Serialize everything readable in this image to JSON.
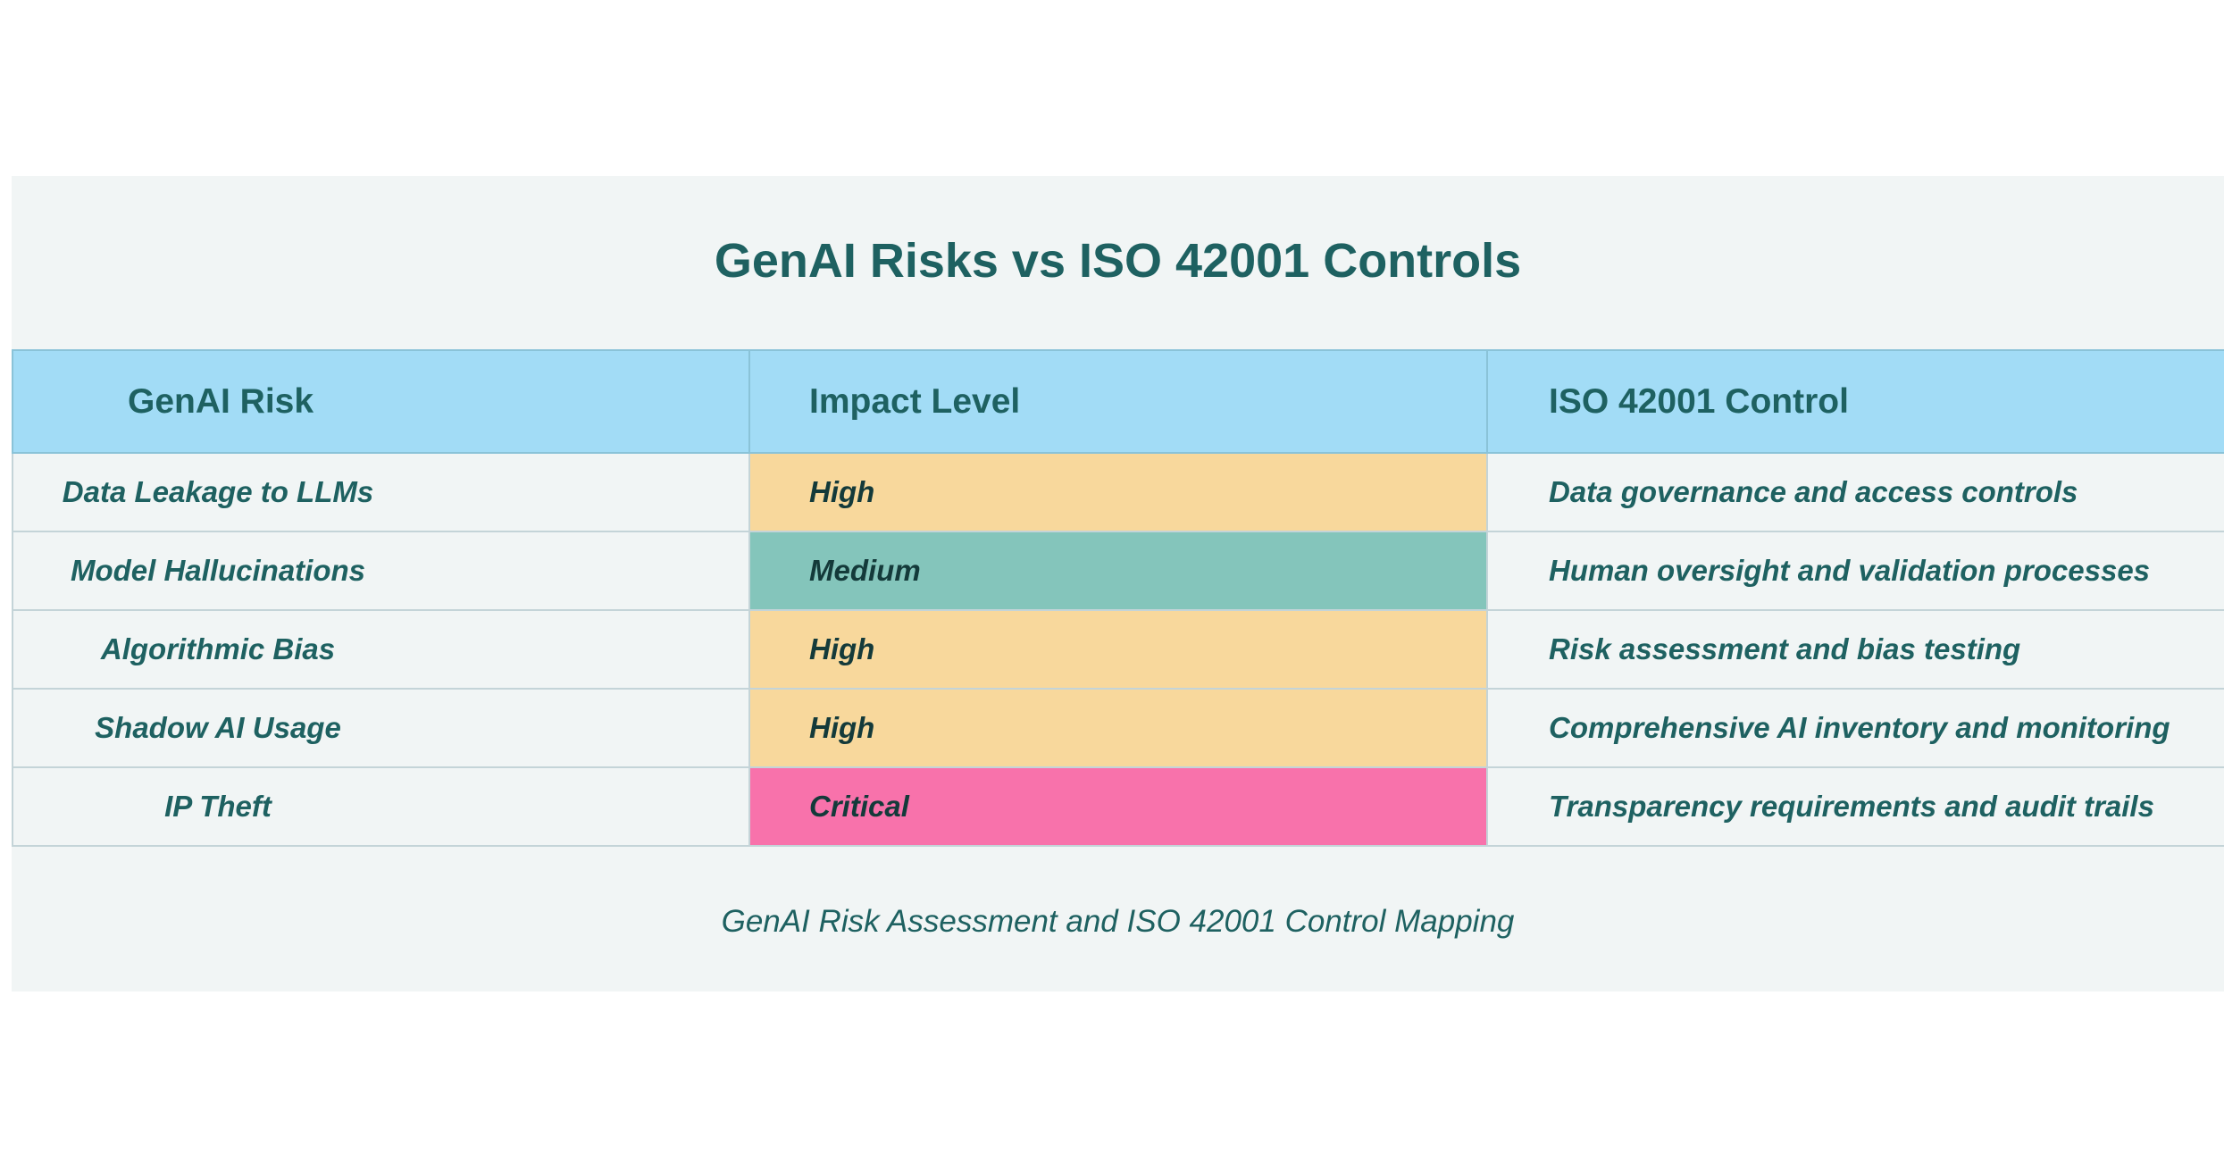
{
  "document": {
    "title": "GenAI Risks vs ISO 42001 Controls",
    "caption": "GenAI Risk Assessment and ISO 42001 Control Mapping",
    "colors": {
      "header_bg": "#a2dcf6",
      "text": "#1e6161",
      "panel_bg": "#f1f5f5",
      "high": "#f8d89c",
      "medium": "#84c5bb",
      "critical": "#f872ab"
    }
  },
  "table": {
    "headers": [
      "GenAI Risk",
      "Impact Level",
      "ISO 42001 Control"
    ],
    "rows": [
      {
        "risk": "Data Leakage to LLMs",
        "impact": "High",
        "control": "Data governance and access controls"
      },
      {
        "risk": "Model Hallucinations",
        "impact": "Medium",
        "control": "Human oversight and validation processes"
      },
      {
        "risk": "Algorithmic Bias",
        "impact": "High",
        "control": "Risk assessment and bias testing"
      },
      {
        "risk": "Shadow AI Usage",
        "impact": "High",
        "control": "Comprehensive AI inventory and monitoring"
      },
      {
        "risk": "IP Theft",
        "impact": "Critical",
        "control": "Transparency requirements and audit trails"
      }
    ]
  }
}
